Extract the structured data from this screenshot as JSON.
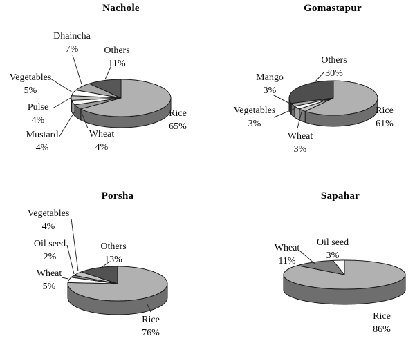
{
  "figure": {
    "background": "#ffffff",
    "style": "scanned grayscale 3D pie charts, four panels, callout labels with leader lines, no legend"
  },
  "chart_data": [
    {
      "type": "pie",
      "title": "Nachole",
      "label_format": "name + percent",
      "legend": "none",
      "start_angle": "12 o'clock",
      "direction": "clockwise",
      "slices": [
        {
          "label": "Rice",
          "value": 65,
          "color": "#b1b1b1"
        },
        {
          "label": "Wheat",
          "value": 4,
          "color": "#9d9d9d"
        },
        {
          "label": "Mustard",
          "value": 4,
          "color": "#f7f7f2"
        },
        {
          "label": "Pulse",
          "value": 4,
          "color": "#bfbfbf"
        },
        {
          "label": "Vegetables",
          "value": 5,
          "color": "#ffffff"
        },
        {
          "label": "Dhaincha",
          "value": 7,
          "color": "#a7a7a7"
        },
        {
          "label": "Others",
          "value": 11,
          "color": "#575757"
        }
      ]
    },
    {
      "type": "pie",
      "title": "Gomastapur",
      "label_format": "name + percent",
      "legend": "none",
      "start_angle": "12 o'clock",
      "direction": "clockwise",
      "slices": [
        {
          "label": "Rice",
          "value": 61,
          "color": "#b1b1b1"
        },
        {
          "label": "Wheat",
          "value": 3,
          "color": "#c8c8c8"
        },
        {
          "label": "Vegetables",
          "value": 3,
          "color": "#ffffff"
        },
        {
          "label": "Mango",
          "value": 3,
          "color": "#aaaaaa"
        },
        {
          "label": "Others",
          "value": 30,
          "color": "#4e4e4e"
        }
      ]
    },
    {
      "type": "pie",
      "title": "Porsha",
      "label_format": "name + percent",
      "legend": "none",
      "start_angle": "12 o'clock",
      "direction": "clockwise",
      "slices": [
        {
          "label": "Rice",
          "value": 76,
          "color": "#b1b1b1"
        },
        {
          "label": "Wheat",
          "value": 5,
          "color": "#ffffff"
        },
        {
          "label": "Oil seed",
          "value": 2,
          "color": "#8e8e8e"
        },
        {
          "label": "Vegetables",
          "value": 4,
          "color": "#c3c3c3"
        },
        {
          "label": "Others",
          "value": 13,
          "color": "#525252"
        }
      ]
    },
    {
      "type": "pie",
      "title": "Sapahar",
      "label_format": "name + percent",
      "legend": "none",
      "start_angle": "12 o'clock",
      "direction": "clockwise",
      "slices": [
        {
          "label": "Rice",
          "value": 86,
          "color": "#b1b1b1"
        },
        {
          "label": "Wheat",
          "value": 11,
          "color": "#7e7e7e"
        },
        {
          "label": "Oil seed",
          "value": 3,
          "color": "#ffffff"
        }
      ]
    }
  ]
}
